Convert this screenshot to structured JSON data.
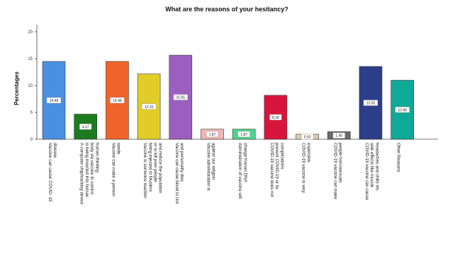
{
  "chart_data": {
    "type": "bar",
    "title": "What are the reasons of your hesitancy?",
    "ylabel": "Percentages",
    "xlabel": "",
    "ylim": [
      0,
      20
    ],
    "yticks": [
      "0",
      "5",
      "10",
      "15",
      "20"
    ],
    "grid": false,
    "categories": [
      [
        "Vaccine can cause COVID- 19",
        "disease"
      ],
      [
        "A computer chip/tracking device",
        "is being inserted into human",
        "body via vaccine to control",
        "human thinking"
      ],
      [
        "Vaccine can make a person",
        "sterile"
      ],
      [
        "Vaccine is someone reaction",
        "being injected to Muslims",
        "or to kill poor people",
        "and reduce the population"
      ],
      [
        "Vaccine can cause blood to clot",
        "and personality dies"
      ],
      [
        "Vaccine administration is",
        "against our religion"
      ],
      [
        "Administration of vaccine will",
        "change human DNA"
      ],
      [
        "COVID-19 vaccine does not",
        "prevent COVID-19 or its",
        "complications"
      ],
      [
        "COVID-19 vaccine is very",
        "expensive"
      ],
      [
        "COVID-19 vaccine can make",
        "people homosexuals"
      ],
      [
        "COVID-19 vaccine can cause",
        "side effects like muscle",
        "headaches and chills etc."
      ],
      [
        "Other Reasons"
      ]
    ],
    "values": [
      14.48,
      4.67,
      14.48,
      12.15,
      15.65,
      1.87,
      1.87,
      8.18,
      0.93,
      1.4,
      13.55,
      10.98
    ],
    "data_labels": [
      "14.48",
      "4.67",
      "14.48",
      "12.15",
      "15.65",
      "1.87",
      "1.87",
      "8.18",
      "0.93",
      "1.40",
      "13.55",
      "10.98"
    ],
    "colors": [
      "#4a90e2",
      "#1e7a1e",
      "#f0642a",
      "#e2cd28",
      "#9b5fc0",
      "#f5b4b4",
      "#4cd58e",
      "#d8143c",
      "#dccbb0",
      "#6b6b6b",
      "#2c3e8a",
      "#10a896"
    ]
  }
}
